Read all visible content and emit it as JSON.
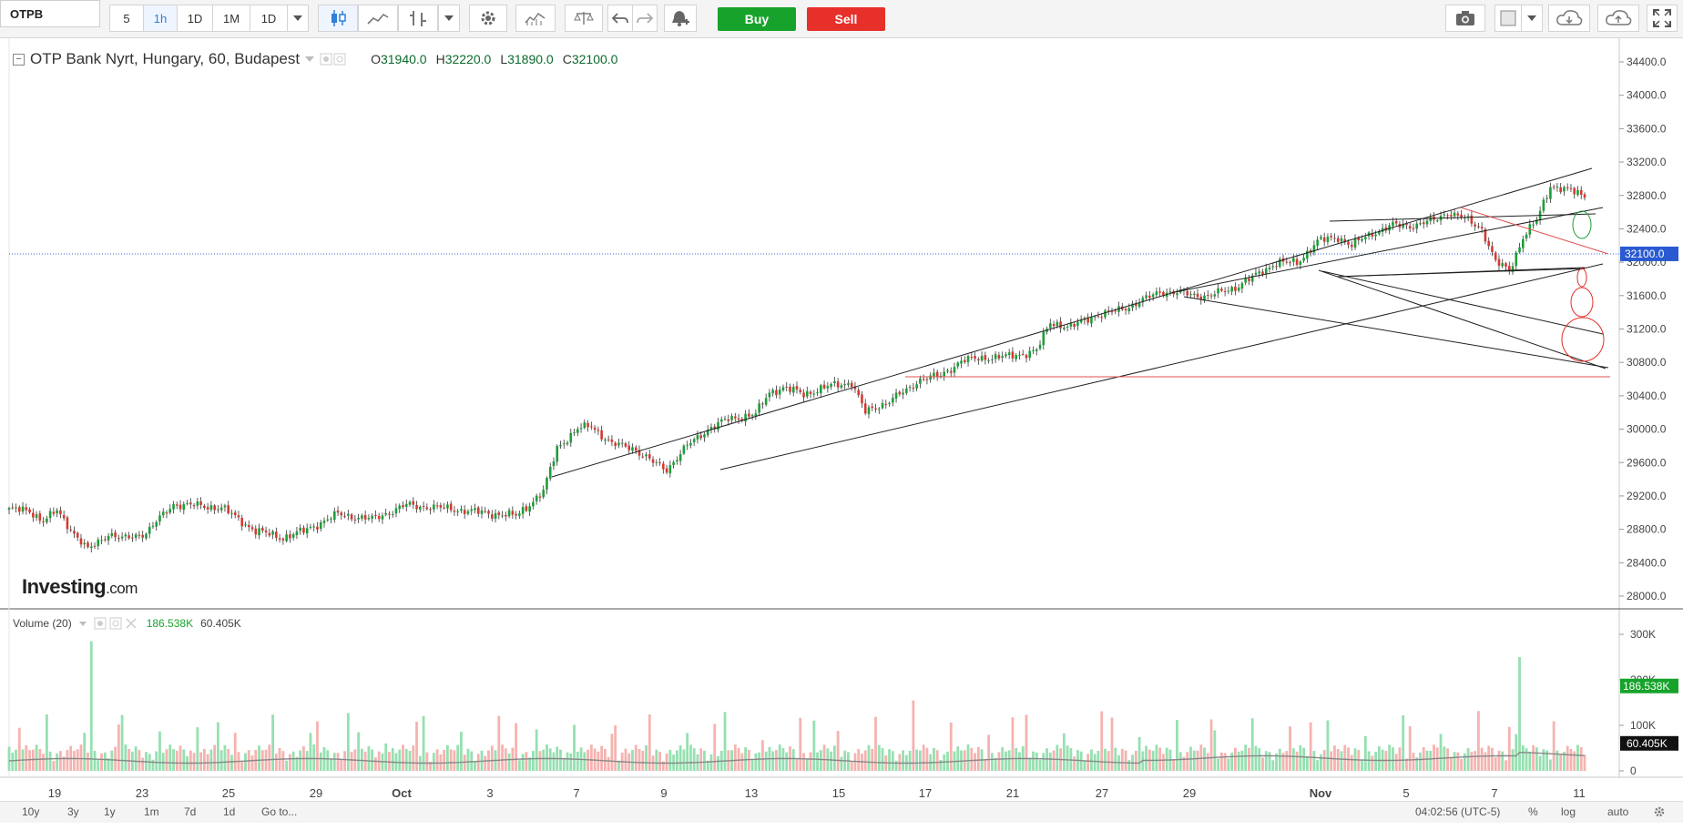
{
  "toolbar": {
    "symbol": "OTPB",
    "intervals": [
      "5",
      "1h",
      "1D",
      "1M",
      "1D"
    ],
    "active_interval": "1h",
    "buy_label": "Buy",
    "sell_label": "Sell",
    "icons": [
      "candles-icon",
      "line-chart-icon",
      "bar-chart-icon",
      "settings-icon",
      "indicators-icon",
      "compare-icon",
      "undo-icon",
      "redo-icon",
      "alert-icon",
      "camera-icon",
      "color-box-icon",
      "cloud-download-icon",
      "cloud-upload-icon",
      "fullscreen-icon"
    ]
  },
  "instrument": {
    "title": "OTP Bank Nyrt, Hungary, 60, Budapest",
    "open_label": "O",
    "open": "31940.0",
    "high_label": "H",
    "high": "32220.0",
    "low_label": "L",
    "low": "31890.0",
    "close_label": "C",
    "close": "32100.0"
  },
  "volume_legend": {
    "label": "Volume (20)",
    "value1": "186.538K",
    "value2": "60.405K"
  },
  "brand": {
    "name": "Investing",
    "suffix": ".com"
  },
  "chart_data": {
    "type": "candlestick",
    "price_axis": {
      "ticks": [
        "34400.0",
        "34000.0",
        "33600.0",
        "33200.0",
        "32800.0",
        "32400.0",
        "32000.0",
        "31600.0",
        "31200.0",
        "30800.0",
        "30400.0",
        "30000.0",
        "29600.0",
        "29200.0",
        "28800.0",
        "28400.0",
        "28000.0"
      ],
      "current_price_label": "32100.0",
      "current_price": 32100,
      "ylim": [
        27900,
        34550
      ]
    },
    "volume_axis": {
      "ticks": [
        "300K",
        "200K",
        "100K",
        "0"
      ],
      "current_label": "186.538K",
      "ma_label": "60.405K",
      "ylim": [
        0,
        330
      ]
    },
    "x_axis_labels": [
      "19",
      "23",
      "25",
      "29",
      "Oct",
      "3",
      "7",
      "9",
      "13",
      "15",
      "17",
      "21",
      "27",
      "29",
      "Nov",
      "5",
      "7",
      "11"
    ],
    "close_path": [
      [
        0,
        29040
      ],
      [
        6,
        29020
      ],
      [
        10,
        28900
      ],
      [
        14,
        29020
      ],
      [
        19,
        28750
      ],
      [
        23,
        28550
      ],
      [
        29,
        28750
      ],
      [
        33,
        28680
      ],
      [
        40,
        28760
      ],
      [
        48,
        29100
      ],
      [
        56,
        29080
      ],
      [
        62,
        29060
      ],
      [
        72,
        28780
      ],
      [
        80,
        28700
      ],
      [
        86,
        28780
      ],
      [
        96,
        28980
      ],
      [
        106,
        28920
      ],
      [
        116,
        29090
      ],
      [
        128,
        29050
      ],
      [
        138,
        29000
      ],
      [
        148,
        28960
      ],
      [
        156,
        29250
      ],
      [
        160,
        29780
      ],
      [
        166,
        30000
      ],
      [
        170,
        30040
      ],
      [
        176,
        29820
      ],
      [
        182,
        29780
      ],
      [
        188,
        29600
      ],
      [
        192,
        29520
      ],
      [
        198,
        29800
      ],
      [
        204,
        30000
      ],
      [
        210,
        30120
      ],
      [
        218,
        30180
      ],
      [
        222,
        30440
      ],
      [
        226,
        30500
      ],
      [
        232,
        30420
      ],
      [
        240,
        30520
      ],
      [
        246,
        30560
      ],
      [
        250,
        30200
      ],
      [
        256,
        30320
      ],
      [
        262,
        30460
      ],
      [
        266,
        30600
      ],
      [
        272,
        30640
      ],
      [
        278,
        30820
      ],
      [
        286,
        30860
      ],
      [
        292,
        30870
      ],
      [
        300,
        30940
      ],
      [
        304,
        31280
      ],
      [
        310,
        31220
      ],
      [
        316,
        31350
      ],
      [
        322,
        31400
      ],
      [
        330,
        31520
      ],
      [
        336,
        31650
      ],
      [
        344,
        31620
      ],
      [
        350,
        31590
      ],
      [
        358,
        31700
      ],
      [
        364,
        31840
      ],
      [
        370,
        32000
      ],
      [
        376,
        31990
      ],
      [
        382,
        32250
      ],
      [
        388,
        32300
      ],
      [
        392,
        32200
      ],
      [
        398,
        32350
      ],
      [
        404,
        32440
      ],
      [
        410,
        32440
      ],
      [
        416,
        32500
      ],
      [
        420,
        32600
      ],
      [
        426,
        32500
      ],
      [
        430,
        32400
      ],
      [
        434,
        32000
      ],
      [
        438,
        31900
      ],
      [
        442,
        32300
      ],
      [
        446,
        32500
      ],
      [
        450,
        32920
      ],
      [
        456,
        32850
      ],
      [
        460,
        32800
      ]
    ],
    "volume_spikes": [
      [
        24,
        285
      ],
      [
        102,
        85
      ],
      [
        441,
        250
      ],
      [
        462,
        205
      ]
    ]
  }
}
